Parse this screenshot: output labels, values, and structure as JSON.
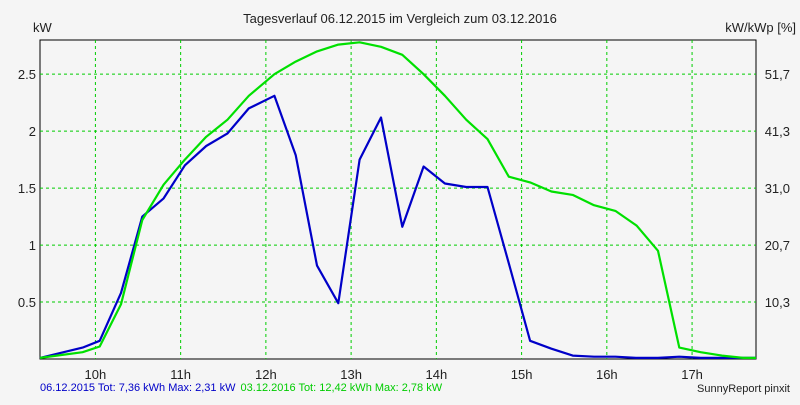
{
  "chart_data": {
    "type": "line",
    "title": "Tagesverlauf 06.12.2015 im Vergleich zum 03.12.2016",
    "ylabel_left": "kW",
    "ylabel_right": "kW/kWp [%]",
    "xlim": [
      9.35,
      17.75
    ],
    "ylim": [
      0,
      2.8
    ],
    "x_ticks": [
      10,
      11,
      12,
      13,
      14,
      15,
      16,
      17
    ],
    "x_tick_labels": [
      "10h",
      "11h",
      "12h",
      "13h",
      "14h",
      "15h",
      "16h",
      "17h"
    ],
    "y_ticks": [
      0.5,
      1,
      1.5,
      2,
      2.5
    ],
    "y_tick_labels": [
      "0.5",
      "1",
      "1.5",
      "2",
      "2.5"
    ],
    "y2_ticks": [
      0.5,
      1,
      1.5,
      2,
      2.5
    ],
    "y2_tick_labels": [
      "10,3",
      "20,7",
      "31,0",
      "41,3",
      "51,7"
    ],
    "grid": true,
    "series": [
      {
        "color": "#0000c8",
        "x": [
          9.35,
          9.85,
          10.05,
          10.3,
          10.55,
          10.8,
          11.05,
          11.3,
          11.55,
          11.8,
          12.1,
          12.35,
          12.6,
          12.85,
          13.1,
          13.35,
          13.6,
          13.85,
          14.1,
          14.35,
          14.6,
          14.85,
          15.1,
          15.35,
          15.6,
          15.85,
          16.1,
          16.35,
          16.6,
          16.85,
          17.1,
          17.35,
          17.6,
          17.75
        ],
        "y": [
          0.01,
          0.1,
          0.16,
          0.58,
          1.25,
          1.41,
          1.7,
          1.87,
          1.98,
          2.2,
          2.31,
          1.79,
          0.82,
          0.49,
          1.75,
          2.12,
          1.16,
          1.69,
          1.54,
          1.51,
          1.51,
          0.84,
          0.16,
          0.09,
          0.03,
          0.02,
          0.02,
          0.01,
          0.01,
          0.02,
          0.01,
          0.01,
          0.01,
          0.01
        ]
      },
      {
        "color": "#00e000",
        "x": [
          9.35,
          9.85,
          10.05,
          10.3,
          10.55,
          10.8,
          11.05,
          11.3,
          11.55,
          11.8,
          12.1,
          12.35,
          12.6,
          12.85,
          13.1,
          13.35,
          13.6,
          13.85,
          14.1,
          14.35,
          14.6,
          14.85,
          15.1,
          15.35,
          15.6,
          15.85,
          16.1,
          16.35,
          16.6,
          16.85,
          17.1,
          17.35,
          17.6,
          17.75
        ],
        "y": [
          0.01,
          0.06,
          0.11,
          0.48,
          1.22,
          1.53,
          1.75,
          1.95,
          2.1,
          2.31,
          2.5,
          2.61,
          2.7,
          2.76,
          2.78,
          2.74,
          2.67,
          2.5,
          2.31,
          2.1,
          1.93,
          1.6,
          1.55,
          1.47,
          1.44,
          1.35,
          1.3,
          1.17,
          0.95,
          0.1,
          0.06,
          0.03,
          0.01,
          0.01
        ]
      }
    ]
  },
  "footer": {
    "series1_text": "06.12.2015 Tot: 7,36 kWh Max: 2,31 kW",
    "series2_text": "03.12.2016 Tot: 12,42 kWh Max: 2,78 kW",
    "credit": "SunnyReport pinxit"
  },
  "colors": {
    "background": "#f5f5f5",
    "grid": "#00cc00",
    "series1": "#0000c8",
    "series2": "#00e000"
  }
}
